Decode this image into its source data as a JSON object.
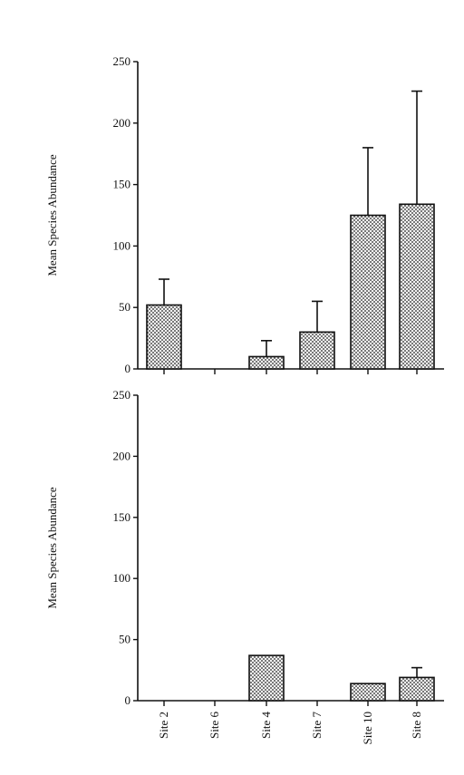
{
  "chart_data": [
    {
      "type": "bar",
      "ylabel": "Mean Species Abundance",
      "ylim": [
        0,
        250
      ],
      "yticks": [
        "0",
        "50",
        "100",
        "150",
        "200",
        "250"
      ],
      "categories": [
        "Site 2",
        "Site 6",
        "Site 4",
        "Site 7",
        "Site 10",
        "Site 8"
      ],
      "values": [
        52,
        0,
        10,
        30,
        125,
        134
      ],
      "error_upper": [
        73,
        0,
        23,
        55,
        180,
        226
      ],
      "bar_fill": "#d8d8d8",
      "bar_stroke": "#111111"
    },
    {
      "type": "bar",
      "ylabel": "Mean Species Abundance",
      "ylim": [
        0,
        250
      ],
      "yticks": [
        "0",
        "50",
        "100",
        "150",
        "200",
        "250"
      ],
      "categories": [
        "Site 2",
        "Site 6",
        "Site 4",
        "Site 7",
        "Site 10",
        "Site 8"
      ],
      "values": [
        0,
        0,
        37,
        0,
        14,
        19
      ],
      "error_upper": [
        0,
        0,
        37,
        0,
        14,
        27
      ],
      "bar_fill": "#d8d8d8",
      "bar_stroke": "#111111"
    }
  ]
}
